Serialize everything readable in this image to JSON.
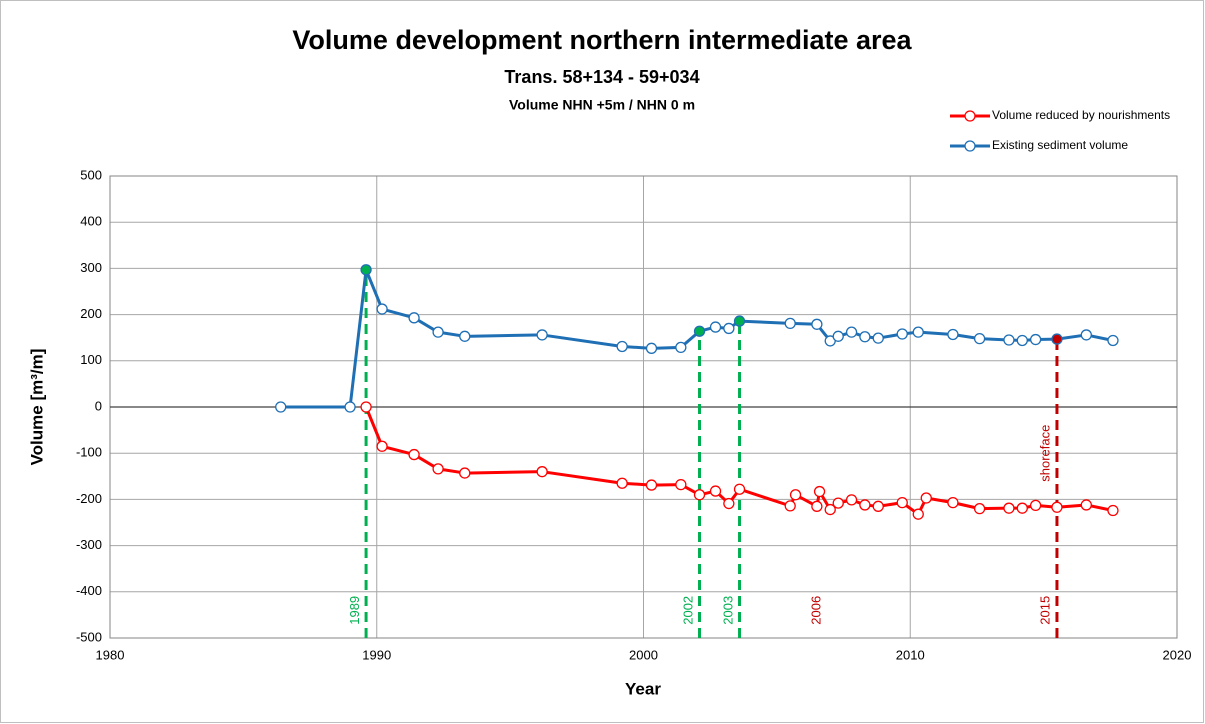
{
  "chart_data": {
    "type": "line",
    "title": "Volume development northern intermediate area",
    "subtitle": "Trans. 58+134 - 59+034",
    "subtitle2": "Volume NHN +5m / NHN 0 m",
    "xlabel": "Year",
    "ylabel": "Volume [m³/m]",
    "xlim": [
      1980,
      2020
    ],
    "xticks": [
      1980,
      1990,
      2000,
      2010,
      2020
    ],
    "ylim": [
      -500,
      500
    ],
    "yticks": [
      -500,
      -400,
      -300,
      -200,
      -100,
      0,
      100,
      200,
      300,
      400,
      500
    ],
    "grid": true,
    "legend": "top-right",
    "series": [
      {
        "name": "Volume reduced by nourishments",
        "color": "#ff0000",
        "x": [
          1989.6,
          1990.2,
          1991.4,
          1992.3,
          1993.3,
          1996.2,
          1999.2,
          2000.3,
          2001.4,
          2002.1,
          2002.7,
          2003.2,
          2003.6,
          2005.5,
          2005.7,
          2006.5,
          2006.6,
          2007.0,
          2007.3,
          2007.8,
          2008.3,
          2008.8,
          2009.7,
          2010.3,
          2010.6,
          2011.6,
          2012.6,
          2013.7,
          2014.2,
          2014.7,
          2015.5,
          2016.6,
          2017.6
        ],
        "values": [
          0,
          -85,
          -103,
          -134,
          -143,
          -140,
          -165,
          -169,
          -168,
          -190,
          -182,
          -209,
          -178,
          -214,
          -190,
          -215,
          -183,
          -222,
          -208,
          -201,
          -212,
          -215,
          -207,
          -232,
          -197,
          -207,
          -220,
          -219,
          -219,
          -213,
          -217,
          -212,
          -224
        ]
      },
      {
        "name": "Existing sediment volume",
        "color": "#1f6fb5",
        "x": [
          1986.4,
          1989.0,
          1989.6,
          1990.2,
          1991.4,
          1992.3,
          1993.3,
          1996.2,
          1999.2,
          2000.3,
          2001.4,
          2002.1,
          2002.7,
          2003.2,
          2003.6,
          2005.5,
          2006.5,
          2007.0,
          2007.3,
          2007.8,
          2008.3,
          2008.8,
          2009.7,
          2010.3,
          2011.6,
          2012.6,
          2013.7,
          2014.2,
          2014.7,
          2015.5,
          2016.6,
          2017.6
        ],
        "values": [
          0,
          0,
          297,
          212,
          193,
          162,
          153,
          156,
          131,
          127,
          129,
          164,
          173,
          170,
          186,
          181,
          179,
          143,
          153,
          162,
          152,
          149,
          158,
          162,
          157,
          148,
          145,
          144,
          146,
          147,
          156,
          144
        ]
      }
    ],
    "vlines": [
      {
        "x": 1989.6,
        "to": 297,
        "color": "#00b050"
      },
      {
        "x": 2002.1,
        "to": 164,
        "color": "#00b050"
      },
      {
        "x": 2003.6,
        "to": 186,
        "color": "#00b050"
      },
      {
        "x": 2015.5,
        "to": 147,
        "color": "#c00000"
      }
    ],
    "annotations": [
      {
        "text": "1989",
        "x": 1989.2,
        "y": -440,
        "color": "#00b050"
      },
      {
        "text": "2002",
        "x": 2001.7,
        "y": -440,
        "color": "#00b050"
      },
      {
        "text": "2003",
        "x": 2003.2,
        "y": -440,
        "color": "#00b050"
      },
      {
        "text": "2006",
        "x": 2006.5,
        "y": -440,
        "color": "#c00000"
      },
      {
        "text": "2015",
        "x": 2015.1,
        "y": -440,
        "color": "#c00000"
      },
      {
        "text": "shoreface",
        "x": 2015.1,
        "y": -100,
        "color": "#c00000"
      }
    ]
  }
}
